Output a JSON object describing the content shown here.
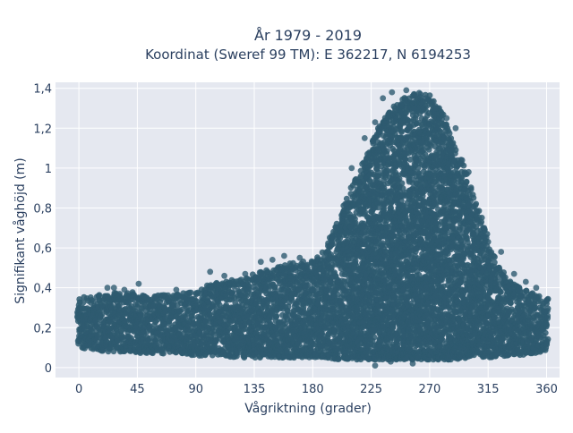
{
  "chart_data": {
    "type": "scatter",
    "title": "År 1979 - 2019",
    "subtitle": "Koordinat (Sweref 99 TM): E 362217, N 6194253",
    "xlabel": "Vågriktning (grader)",
    "ylabel": "Signifikant våghöjd (m)",
    "xlim": [
      -18,
      370
    ],
    "ylim": [
      -0.05,
      1.43
    ],
    "x_ticks": [
      0,
      45,
      90,
      135,
      180,
      225,
      270,
      315,
      360
    ],
    "x_tick_labels": [
      "0",
      "45",
      "90",
      "135",
      "180",
      "225",
      "270",
      "315",
      "360"
    ],
    "y_ticks": [
      0,
      0.2,
      0.4,
      0.6,
      0.8,
      1.0,
      1.2,
      1.4
    ],
    "y_tick_labels": [
      "0",
      "0,2",
      "0,4",
      "0,6",
      "0,8",
      "1",
      "1,2",
      "1,4"
    ],
    "grid": true,
    "legend": "none",
    "marker_color": "#2e5a70",
    "plot_bg": "#e5e8f0",
    "envelope": {
      "direction_deg": [
        0,
        10,
        20,
        30,
        40,
        50,
        60,
        70,
        80,
        90,
        100,
        110,
        120,
        130,
        140,
        150,
        160,
        170,
        180,
        190,
        200,
        210,
        220,
        230,
        240,
        250,
        260,
        270,
        280,
        290,
        300,
        310,
        320,
        330,
        340,
        350,
        360
      ],
      "min_height_m": [
        0.1,
        0.09,
        0.08,
        0.08,
        0.08,
        0.07,
        0.07,
        0.07,
        0.07,
        0.06,
        0.06,
        0.06,
        0.05,
        0.05,
        0.05,
        0.05,
        0.05,
        0.05,
        0.05,
        0.05,
        0.04,
        0.04,
        0.04,
        0.04,
        0.04,
        0.04,
        0.04,
        0.04,
        0.04,
        0.04,
        0.05,
        0.05,
        0.05,
        0.06,
        0.06,
        0.07,
        0.08
      ],
      "max_height_m": [
        0.35,
        0.36,
        0.37,
        0.38,
        0.38,
        0.37,
        0.36,
        0.37,
        0.38,
        0.38,
        0.42,
        0.43,
        0.44,
        0.46,
        0.48,
        0.5,
        0.52,
        0.53,
        0.54,
        0.6,
        0.75,
        0.92,
        1.05,
        1.2,
        1.3,
        1.35,
        1.38,
        1.37,
        1.28,
        1.1,
        0.95,
        0.75,
        0.55,
        0.44,
        0.4,
        0.37,
        0.35
      ]
    },
    "highlighted_points": [
      {
        "x": 22,
        "y": 0.4
      },
      {
        "x": 27,
        "y": 0.4
      },
      {
        "x": 35,
        "y": 0.39
      },
      {
        "x": 46,
        "y": 0.42
      },
      {
        "x": 75,
        "y": 0.39
      },
      {
        "x": 101,
        "y": 0.48
      },
      {
        "x": 112,
        "y": 0.46
      },
      {
        "x": 128,
        "y": 0.47
      },
      {
        "x": 140,
        "y": 0.53
      },
      {
        "x": 149,
        "y": 0.54
      },
      {
        "x": 158,
        "y": 0.56
      },
      {
        "x": 170,
        "y": 0.55
      },
      {
        "x": 205,
        "y": 0.82
      },
      {
        "x": 210,
        "y": 1.0
      },
      {
        "x": 220,
        "y": 1.15
      },
      {
        "x": 228,
        "y": 1.23
      },
      {
        "x": 234,
        "y": 1.35
      },
      {
        "x": 241,
        "y": 1.38
      },
      {
        "x": 248,
        "y": 1.32
      },
      {
        "x": 252,
        "y": 1.39
      },
      {
        "x": 258,
        "y": 1.3
      },
      {
        "x": 263,
        "y": 1.37
      },
      {
        "x": 267,
        "y": 1.35
      },
      {
        "x": 274,
        "y": 1.3
      },
      {
        "x": 283,
        "y": 1.25
      },
      {
        "x": 290,
        "y": 1.2
      },
      {
        "x": 295,
        "y": 1.04
      },
      {
        "x": 300,
        "y": 0.98
      },
      {
        "x": 312,
        "y": 0.7
      },
      {
        "x": 325,
        "y": 0.58
      },
      {
        "x": 335,
        "y": 0.47
      },
      {
        "x": 344,
        "y": 0.43
      },
      {
        "x": 352,
        "y": 0.4
      },
      {
        "x": 228,
        "y": 0.01
      },
      {
        "x": 240,
        "y": 0.03
      },
      {
        "x": 257,
        "y": 0.02
      }
    ]
  }
}
